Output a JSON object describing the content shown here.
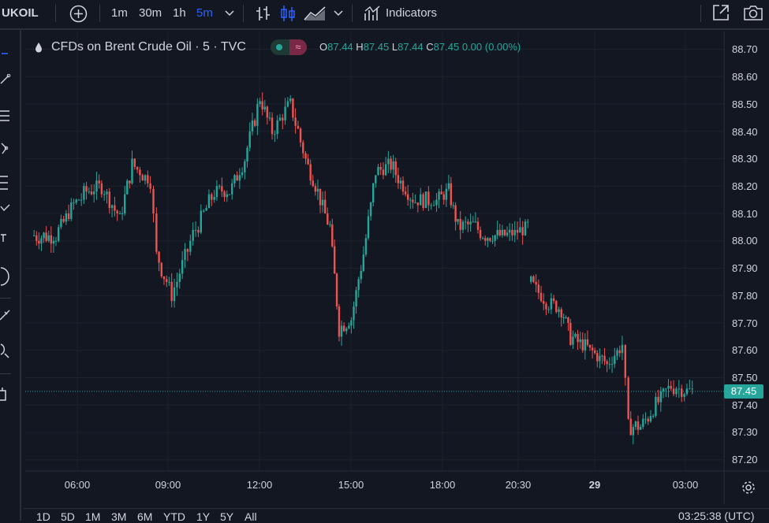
{
  "toolbar": {
    "symbol": "UKOIL",
    "intervals": [
      "1m",
      "30m",
      "1h",
      "5m"
    ],
    "active_interval": "5m",
    "indicators_label": "Indicators"
  },
  "legend": {
    "title": "CFDs on Brent Crude Oil · 5 · TVC",
    "open_key": "O",
    "open": "87.44",
    "high_key": "H",
    "high": "87.45",
    "low_key": "L",
    "low": "87.44",
    "close_key": "C",
    "close": "87.45",
    "change": "0.00 (0.00%)",
    "up_color": "#26a69a",
    "down_color": "#ef5350"
  },
  "price_axis": {
    "ticks": [
      "88.70",
      "88.60",
      "88.50",
      "88.40",
      "88.30",
      "88.20",
      "88.10",
      "88.00",
      "87.90",
      "87.80",
      "87.70",
      "87.60",
      "87.50",
      "87.40",
      "87.30",
      "87.20"
    ],
    "current_price": "87.45"
  },
  "time_axis": {
    "ticks": [
      "06:00",
      "09:00",
      "12:00",
      "15:00",
      "18:00",
      "20:30",
      "29",
      "03:00"
    ]
  },
  "range_buttons": [
    "1D",
    "5D",
    "1M",
    "3M",
    "6M",
    "YTD",
    "1Y",
    "5Y",
    "All"
  ],
  "clock": "03:25:38 (UTC)",
  "chart_data": {
    "type": "candlestick",
    "interval": "5m",
    "ylim": [
      87.15,
      88.73
    ],
    "last_price": 87.45,
    "anchors": [
      [
        4.5,
        88.02
      ],
      [
        5.3,
        88.02
      ],
      [
        5.8,
        88.12
      ],
      [
        6.3,
        88.18
      ],
      [
        6.8,
        88.2
      ],
      [
        7.4,
        88.08
      ],
      [
        7.8,
        88.28
      ],
      [
        8.4,
        88.22
      ],
      [
        8.6,
        87.95
      ],
      [
        9.1,
        87.8
      ],
      [
        9.8,
        88.02
      ],
      [
        10.5,
        88.18
      ],
      [
        11.0,
        88.18
      ],
      [
        11.5,
        88.3
      ],
      [
        12.0,
        88.52
      ],
      [
        12.4,
        88.4
      ],
      [
        13.0,
        88.5
      ],
      [
        13.5,
        88.3
      ],
      [
        14.3,
        88.05
      ],
      [
        14.6,
        87.68
      ],
      [
        15.0,
        87.72
      ],
      [
        15.4,
        87.95
      ],
      [
        15.8,
        88.25
      ],
      [
        16.3,
        88.28
      ],
      [
        16.7,
        88.2
      ],
      [
        17.1,
        88.15
      ],
      [
        17.8,
        88.15
      ],
      [
        18.2,
        88.18
      ],
      [
        18.5,
        88.05
      ],
      [
        19.0,
        88.06
      ],
      [
        19.4,
        88.02
      ],
      [
        20.2,
        88.02
      ],
      [
        20.8,
        88.05
      ],
      [
        20.82,
        87.85
      ],
      [
        21.4,
        87.78
      ],
      [
        21.9,
        87.75
      ],
      [
        22.2,
        87.65
      ],
      [
        22.6,
        87.62
      ],
      [
        23.4,
        87.55
      ],
      [
        23.9,
        87.62
      ],
      [
        24.1,
        87.32
      ],
      [
        24.5,
        87.32
      ],
      [
        25.0,
        87.4
      ],
      [
        25.5,
        87.47
      ],
      [
        26.2,
        87.45
      ]
    ]
  }
}
